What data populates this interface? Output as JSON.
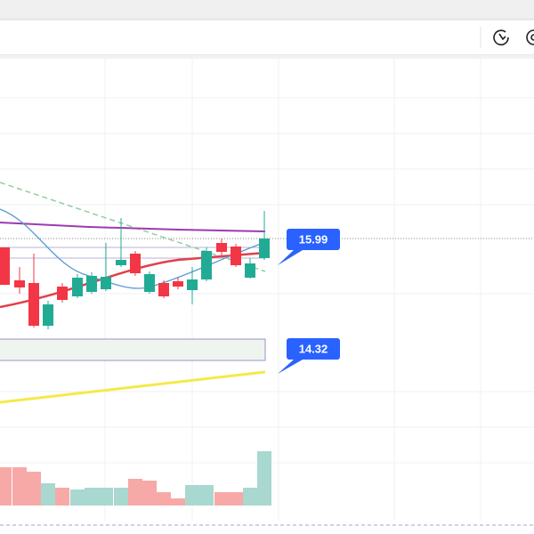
{
  "price_labels": [
    "15.99",
    "14.32"
  ]
}
